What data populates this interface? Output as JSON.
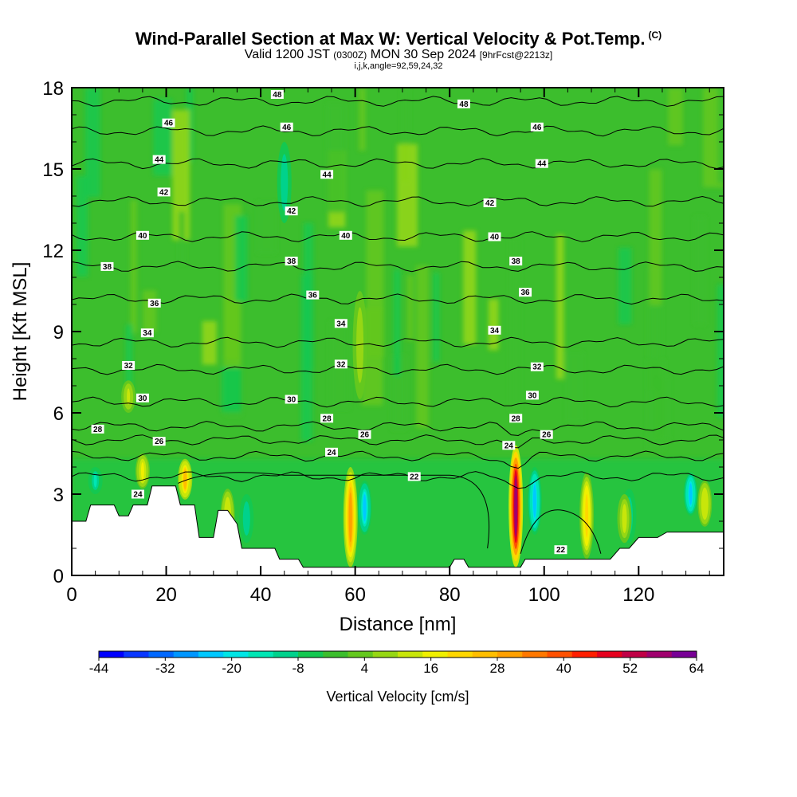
{
  "title": "Wind-Parallel Section at Max W: Vertical Velocity & Pot.Temp.",
  "title_mark": "(C)",
  "subtitle": {
    "valid": "Valid 1200 JST",
    "utc": "(0300Z)",
    "date": "MON 30 Sep 2024",
    "forecast": "[9hrFcst@2213z]"
  },
  "info_line": "i,j,k,angle=92,59,24,32",
  "chart_data": {
    "type": "heatmap",
    "xlabel": "Distance [nm]",
    "ylabel": "Height [Kft MSL]",
    "xlim": [
      0,
      138
    ],
    "ylim": [
      0,
      18
    ],
    "x_ticks": [
      0,
      20,
      40,
      60,
      80,
      100,
      120
    ],
    "y_ticks": [
      0,
      3,
      6,
      9,
      12,
      15,
      18
    ],
    "colorbar": {
      "label": "Vertical Velocity [cm/s]",
      "ticks": [
        -44,
        -32,
        -20,
        -8,
        4,
        16,
        28,
        40,
        52,
        64
      ],
      "min": -44,
      "max": 64,
      "colors": [
        "#0000ff",
        "#0a37ff",
        "#0068ff",
        "#0096ff",
        "#00c8ff",
        "#00e6e6",
        "#00e6b4",
        "#00d28c",
        "#14c850",
        "#3cbe2d",
        "#64c81e",
        "#96d714",
        "#c8e60a",
        "#f0f000",
        "#ffd700",
        "#ffbe00",
        "#ffa000",
        "#ff7800",
        "#ff5000",
        "#ff1e00",
        "#e6001e",
        "#c00046",
        "#a0006e",
        "#780096"
      ]
    },
    "terrain": [
      [
        0,
        2
      ],
      [
        3,
        2
      ],
      [
        4,
        2.6
      ],
      [
        9,
        2.6
      ],
      [
        10,
        2.2
      ],
      [
        12,
        2.2
      ],
      [
        13,
        2.6
      ],
      [
        16,
        2.6
      ],
      [
        17,
        3.3
      ],
      [
        22,
        3.3
      ],
      [
        23,
        2.6
      ],
      [
        26,
        2.6
      ],
      [
        27,
        1.4
      ],
      [
        30,
        1.4
      ],
      [
        31,
        2.4
      ],
      [
        33,
        2.4
      ],
      [
        35,
        1.9
      ],
      [
        36,
        1.0
      ],
      [
        43,
        1.0
      ],
      [
        44,
        0.6
      ],
      [
        48,
        0.6
      ],
      [
        49,
        0.3
      ],
      [
        80,
        0.3
      ],
      [
        81,
        0.6
      ],
      [
        83,
        0.6
      ],
      [
        84,
        0.3
      ],
      [
        95,
        0.3
      ],
      [
        96,
        0.6
      ],
      [
        114,
        0.6
      ],
      [
        116,
        1.0
      ],
      [
        118,
        1.0
      ],
      [
        120,
        1.4
      ],
      [
        124,
        1.4
      ],
      [
        126,
        1.6
      ],
      [
        138,
        1.6
      ]
    ],
    "updrafts": [
      {
        "x": 94,
        "y_min": 0.3,
        "y_max": 4.8,
        "value": 55
      },
      {
        "x": 59,
        "y_min": 0.3,
        "y_max": 4.0,
        "value": 28
      },
      {
        "x": 24,
        "y_min": 2.8,
        "y_max": 4.3,
        "value": 26
      },
      {
        "x": 109,
        "y_min": 0.6,
        "y_max": 3.8,
        "value": 22
      },
      {
        "x": 15,
        "y_min": 3.2,
        "y_max": 4.5,
        "value": 15
      },
      {
        "x": 33,
        "y_min": 1.2,
        "y_max": 3.2,
        "value": 14
      },
      {
        "x": 117,
        "y_min": 1.2,
        "y_max": 3.0,
        "value": 12
      },
      {
        "x": 134,
        "y_min": 1.8,
        "y_max": 3.5,
        "value": 14
      },
      {
        "x": 61,
        "y_min": 6.5,
        "y_max": 10.5,
        "value": 8
      },
      {
        "x": 12,
        "y_min": 6.0,
        "y_max": 7.2,
        "value": 10
      }
    ],
    "downdrafts": [
      {
        "x": 62,
        "y_min": 1.5,
        "y_max": 3.5,
        "value": -22
      },
      {
        "x": 98,
        "y_min": 1.5,
        "y_max": 4.0,
        "value": -24
      },
      {
        "x": 131,
        "y_min": 2.2,
        "y_max": 3.8,
        "value": -24
      },
      {
        "x": 5,
        "y_min": 3.0,
        "y_max": 4.0,
        "value": -14
      },
      {
        "x": 37,
        "y_min": 1.2,
        "y_max": 3.0,
        "value": -12
      },
      {
        "x": 118,
        "y_min": 1.2,
        "y_max": 3.2,
        "value": -12
      },
      {
        "x": 45,
        "y_min": 13.0,
        "y_max": 16.0,
        "value": -12
      }
    ],
    "theta_contours": [
      {
        "value": 22,
        "base_y": 3.65
      },
      {
        "value": 24,
        "base_y": 4.4
      },
      {
        "value": 26,
        "base_y": 5.0
      },
      {
        "value": 28,
        "base_y": 5.5
      },
      {
        "value": 30,
        "base_y": 6.4
      },
      {
        "value": 32,
        "base_y": 7.6
      },
      {
        "value": 34,
        "base_y": 8.6
      },
      {
        "value": 36,
        "base_y": 10.2
      },
      {
        "value": 38,
        "base_y": 11.4
      },
      {
        "value": 40,
        "base_y": 12.5
      },
      {
        "value": 42,
        "base_y": 13.8
      },
      {
        "value": 44,
        "base_y": 15.2
      },
      {
        "value": 46,
        "base_y": 16.4
      },
      {
        "value": 48,
        "base_y": 17.5
      }
    ],
    "contour_labels": [
      {
        "text": "48",
        "x": 43.5,
        "y": 17.75
      },
      {
        "text": "48",
        "x": 83,
        "y": 17.4
      },
      {
        "text": "46",
        "x": 20.5,
        "y": 16.7
      },
      {
        "text": "46",
        "x": 45.5,
        "y": 16.55
      },
      {
        "text": "46",
        "x": 98.5,
        "y": 16.55
      },
      {
        "text": "44",
        "x": 18.5,
        "y": 15.35
      },
      {
        "text": "44",
        "x": 54,
        "y": 14.8
      },
      {
        "text": "44",
        "x": 99.5,
        "y": 15.2
      },
      {
        "text": "42",
        "x": 19.5,
        "y": 14.15
      },
      {
        "text": "42",
        "x": 46.5,
        "y": 13.45
      },
      {
        "text": "42",
        "x": 88.5,
        "y": 13.75
      },
      {
        "text": "40",
        "x": 15,
        "y": 12.55
      },
      {
        "text": "40",
        "x": 58,
        "y": 12.55
      },
      {
        "text": "40",
        "x": 89.5,
        "y": 12.5
      },
      {
        "text": "38",
        "x": 7.5,
        "y": 11.4
      },
      {
        "text": "38",
        "x": 46.5,
        "y": 11.6
      },
      {
        "text": "38",
        "x": 94,
        "y": 11.6
      },
      {
        "text": "36",
        "x": 17.5,
        "y": 10.05
      },
      {
        "text": "36",
        "x": 51,
        "y": 10.35
      },
      {
        "text": "36",
        "x": 96,
        "y": 10.45
      },
      {
        "text": "34",
        "x": 16,
        "y": 8.95
      },
      {
        "text": "34",
        "x": 57,
        "y": 9.3
      },
      {
        "text": "34",
        "x": 89.5,
        "y": 9.05
      },
      {
        "text": "32",
        "x": 12,
        "y": 7.75
      },
      {
        "text": "32",
        "x": 57,
        "y": 7.8
      },
      {
        "text": "32",
        "x": 98.5,
        "y": 7.7
      },
      {
        "text": "30",
        "x": 15,
        "y": 6.55
      },
      {
        "text": "30",
        "x": 46.5,
        "y": 6.5
      },
      {
        "text": "30",
        "x": 97.5,
        "y": 6.65
      },
      {
        "text": "28",
        "x": 5.5,
        "y": 5.4
      },
      {
        "text": "28",
        "x": 54,
        "y": 5.8
      },
      {
        "text": "28",
        "x": 94,
        "y": 5.8
      },
      {
        "text": "26",
        "x": 18.5,
        "y": 4.95
      },
      {
        "text": "26",
        "x": 62,
        "y": 5.2
      },
      {
        "text": "26",
        "x": 100.5,
        "y": 5.2
      },
      {
        "text": "24",
        "x": 55,
        "y": 4.55
      },
      {
        "text": "24",
        "x": 92.5,
        "y": 4.8
      },
      {
        "text": "24",
        "x": 14,
        "y": 3.0
      },
      {
        "text": "22",
        "x": 72.5,
        "y": 3.65
      },
      {
        "text": "22",
        "x": 103.5,
        "y": 0.95
      }
    ]
  }
}
